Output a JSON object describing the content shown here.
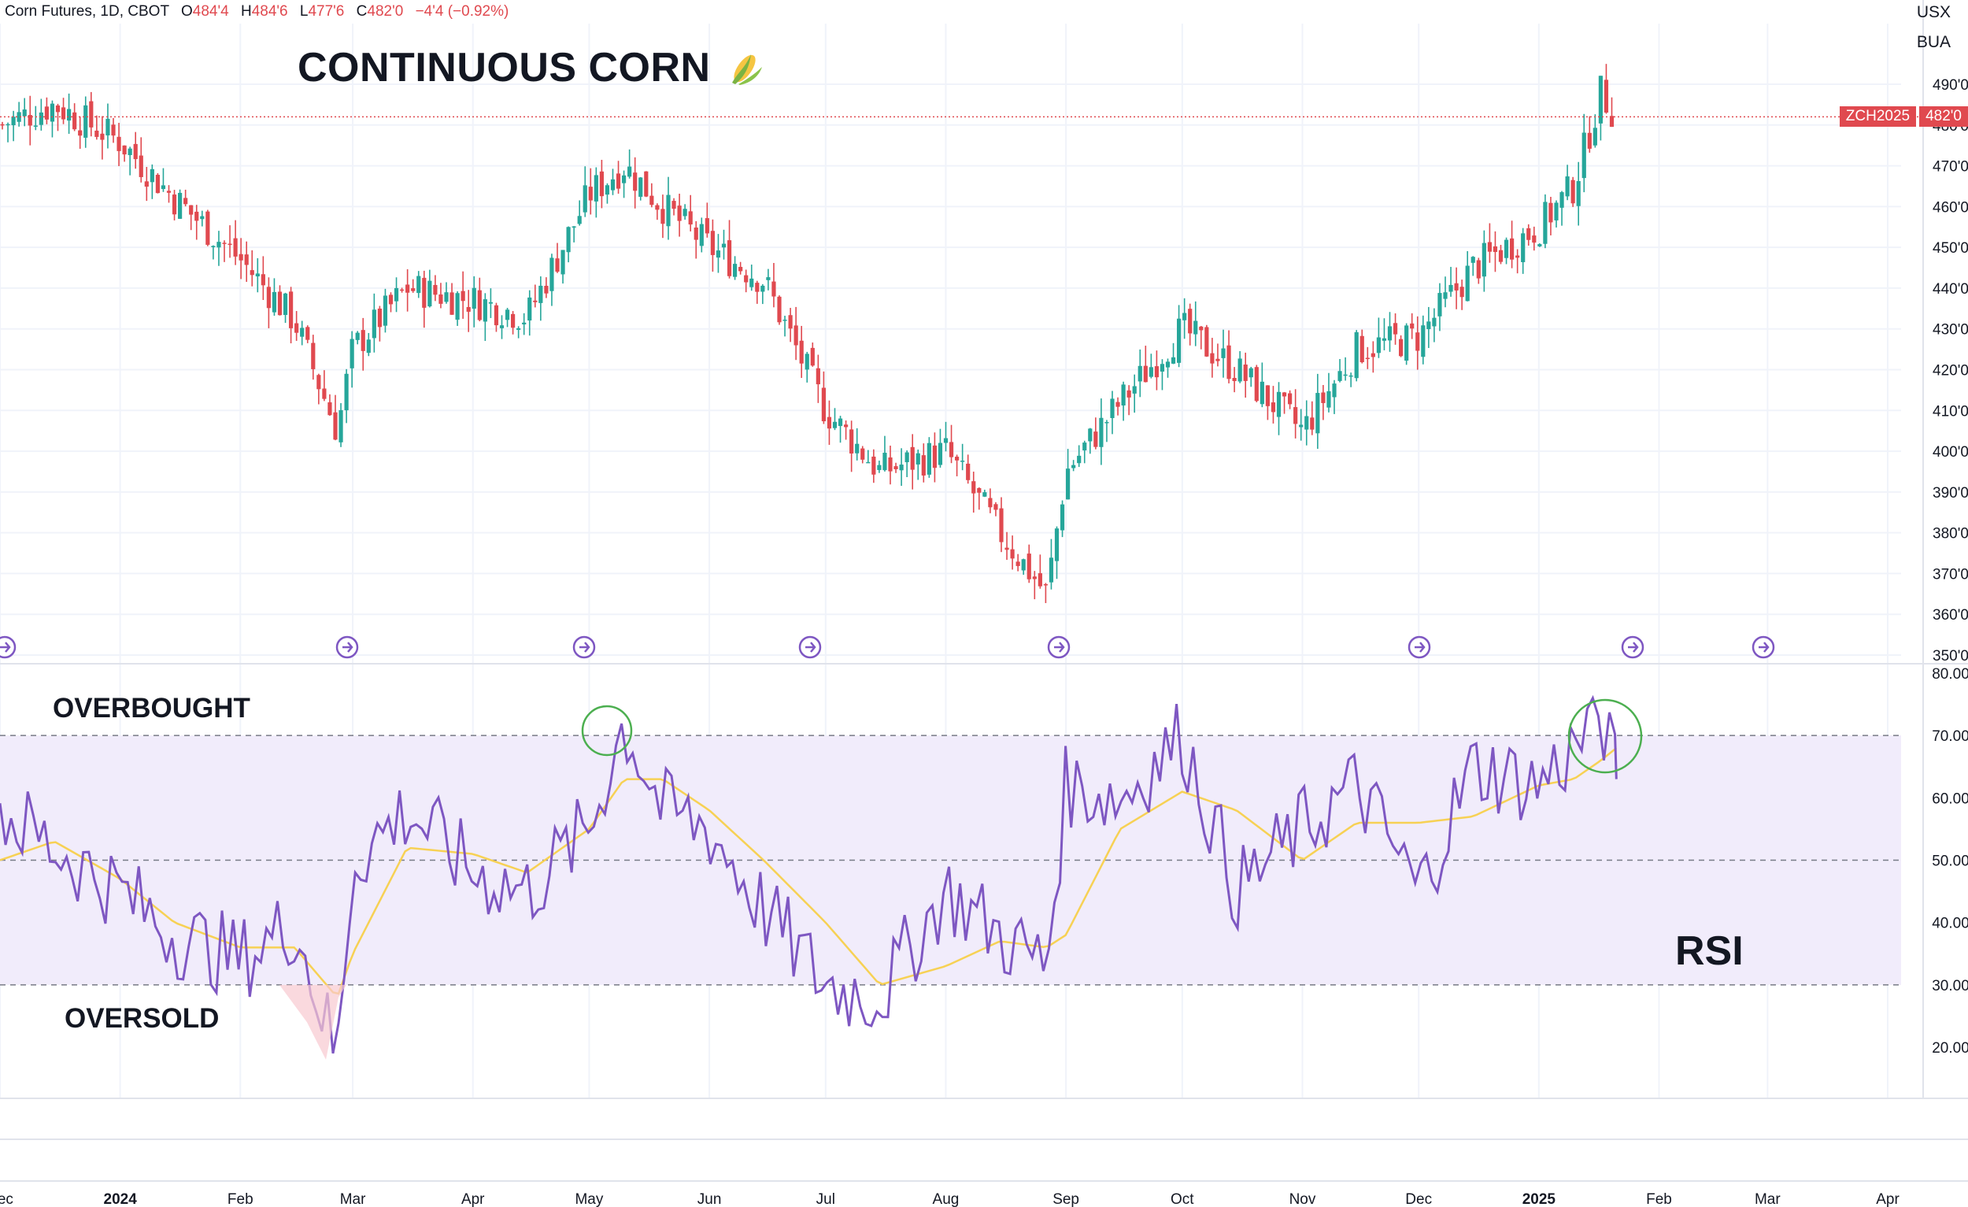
{
  "header": {
    "symbol": "Corn Futures, 1D, CBOT",
    "open_label": "O",
    "open": "484'4",
    "high_label": "H",
    "high": "484'6",
    "low_label": "L",
    "low": "477'6",
    "close_label": "C",
    "close": "482'0",
    "change": "−4'4 (−0.92%)"
  },
  "units": {
    "currency": "USX",
    "unit": "BUA"
  },
  "title": "CONTINUOUS CORN",
  "annotations": {
    "overbought": "OVERBOUGHT",
    "oversold": "OVERSOLD",
    "rsi": "RSI"
  },
  "price_tag": {
    "symbol": "ZCH2025",
    "value": "482'0",
    "color": "#e0494f"
  },
  "colors": {
    "up": "#26a69a",
    "down": "#e0494f",
    "rsi": "#7e57c2",
    "rsi_ma": "#f7d154",
    "band": "#f1ecfb",
    "circle": "#4caf50"
  },
  "chart_data": [
    {
      "type": "candlestick",
      "title": "CONTINUOUS CORN",
      "ylabel": "USX/BUA",
      "ylim": [
        350,
        495
      ],
      "y_tick_labels": [
        "490'0",
        "480'0",
        "470'0",
        "460'0",
        "450'0",
        "440'0",
        "430'0",
        "420'0",
        "410'0",
        "400'0",
        "390'0",
        "380'0",
        "370'0",
        "360'0",
        "350'0"
      ],
      "y_ticks": [
        490,
        480,
        470,
        460,
        450,
        440,
        430,
        420,
        410,
        400,
        390,
        380,
        370,
        360,
        350
      ],
      "x_tick_labels": [
        "Dec",
        "2024",
        "Feb",
        "Mar",
        "Apr",
        "May",
        "Jun",
        "Jul",
        "Aug",
        "Sep",
        "Oct",
        "Nov",
        "Dec",
        "2025",
        "Feb",
        "Mar",
        "Apr"
      ],
      "x_ticks": [
        "2023-12-01",
        "2024-01-01",
        "2024-02-01",
        "2024-03-01",
        "2024-04-01",
        "2024-05-01",
        "2024-06-01",
        "2024-07-01",
        "2024-08-01",
        "2024-09-01",
        "2024-10-01",
        "2024-11-01",
        "2024-12-01",
        "2025-01-01",
        "2025-02-01",
        "2025-03-01",
        "2025-04-01"
      ],
      "last_price": 482,
      "series": [
        {
          "x": [
            "2023-12-01",
            "2023-12-15",
            "2024-01-01",
            "2024-01-15",
            "2024-02-01",
            "2024-02-15",
            "2024-02-26",
            "2024-03-01",
            "2024-03-15",
            "2024-04-01",
            "2024-04-15",
            "2024-05-01",
            "2024-05-10",
            "2024-05-20",
            "2024-06-01",
            "2024-06-15",
            "2024-07-01",
            "2024-07-15",
            "2024-08-01",
            "2024-08-15",
            "2024-08-27",
            "2024-09-01",
            "2024-09-15",
            "2024-10-01",
            "2024-10-15",
            "2024-11-01",
            "2024-11-15",
            "2024-12-01",
            "2024-12-15",
            "2025-01-01",
            "2025-01-10",
            "2025-01-17",
            "2025-01-21"
          ],
          "close": [
            480,
            485,
            476,
            462,
            447,
            432,
            405,
            425,
            440,
            437,
            433,
            463,
            470,
            460,
            450,
            442,
            410,
            395,
            400,
            380,
            365,
            395,
            412,
            430,
            420,
            405,
            425,
            428,
            445,
            455,
            465,
            488,
            482
          ]
        }
      ]
    },
    {
      "type": "line",
      "ylabel": "RSI",
      "ylim": [
        15,
        82
      ],
      "y_tick_labels": [
        "80.00",
        "70.00",
        "60.00",
        "50.00",
        "40.00",
        "30.00",
        "20.00"
      ],
      "y_ticks": [
        80,
        70,
        60,
        50,
        40,
        30,
        20
      ],
      "reference_lines": [
        70,
        50,
        30
      ],
      "series": [
        {
          "name": "RSI",
          "x": [
            "2023-12-01",
            "2023-12-15",
            "2024-01-01",
            "2024-01-15",
            "2024-02-01",
            "2024-02-15",
            "2024-02-26",
            "2024-03-01",
            "2024-03-15",
            "2024-04-01",
            "2024-04-15",
            "2024-05-01",
            "2024-05-10",
            "2024-05-20",
            "2024-06-01",
            "2024-06-15",
            "2024-07-01",
            "2024-07-15",
            "2024-08-01",
            "2024-08-15",
            "2024-08-27",
            "2024-09-01",
            "2024-09-15",
            "2024-10-01",
            "2024-10-15",
            "2024-11-01",
            "2024-11-15",
            "2024-12-01",
            "2024-12-15",
            "2025-01-01",
            "2025-01-10",
            "2025-01-17",
            "2025-01-21"
          ],
          "values": [
            58,
            52,
            45,
            38,
            34,
            40,
            18,
            50,
            58,
            48,
            45,
            55,
            72,
            58,
            55,
            42,
            30,
            28,
            45,
            38,
            33,
            62,
            60,
            70,
            45,
            55,
            62,
            45,
            65,
            62,
            68,
            74,
            63
          ]
        },
        {
          "name": "RSI MA",
          "x": [
            "2023-12-01",
            "2023-12-15",
            "2024-01-01",
            "2024-01-15",
            "2024-02-01",
            "2024-02-15",
            "2024-02-26",
            "2024-03-01",
            "2024-03-15",
            "2024-04-01",
            "2024-04-15",
            "2024-05-01",
            "2024-05-10",
            "2024-05-20",
            "2024-06-01",
            "2024-06-15",
            "2024-07-01",
            "2024-07-15",
            "2024-08-01",
            "2024-08-15",
            "2024-08-27",
            "2024-09-01",
            "2024-09-15",
            "2024-10-01",
            "2024-10-15",
            "2024-11-01",
            "2024-11-15",
            "2024-12-01",
            "2024-12-15",
            "2025-01-01",
            "2025-01-10",
            "2025-01-17",
            "2025-01-21"
          ],
          "values": [
            50,
            53,
            47,
            40,
            36,
            36,
            28,
            35,
            52,
            51,
            48,
            55,
            63,
            63,
            58,
            50,
            40,
            30,
            33,
            37,
            36,
            38,
            55,
            61,
            58,
            50,
            56,
            56,
            57,
            62,
            63,
            66,
            68
          ]
        }
      ]
    }
  ]
}
